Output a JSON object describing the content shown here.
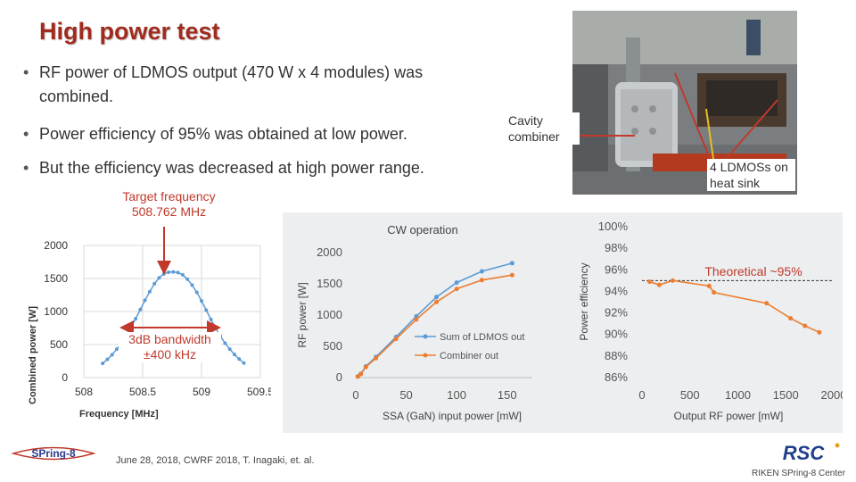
{
  "slide": {
    "title": "High power test",
    "bullets": [
      "RF power of LDMOS output (470 W x 4 modules) was combined.",
      "Power efficiency of 95% was obtained at low power.",
      "But the efficiency was decreased at high power range."
    ],
    "photo_labels": {
      "cavity": "Cavity combiner",
      "ldmos": "4 LDMOSs on heat sink"
    },
    "annotations": {
      "target": "Target frequency 508.762 MHz",
      "bandwidth": "3dB bandwidth ±400 kHz",
      "theoretical": "Theoretical ~95%"
    },
    "footer_citation": "June 28, 2018, CWRF 2018,   T. Inagaki, et. al.",
    "footer_org": "RIKEN SPring-8 Center",
    "logo_left": "SPring-8",
    "logo_right": "RSC"
  },
  "chart_data": [
    {
      "type": "line",
      "xlabel": "Frequency [MHz]",
      "ylabel": "Combined power [W]",
      "xlim": [
        508,
        509.5
      ],
      "ylim": [
        0,
        2000
      ],
      "xticks": [
        "508",
        "508.5",
        "509",
        "509.5"
      ],
      "yticks": [
        "0",
        "500",
        "1000",
        "1500",
        "2000"
      ],
      "grid": true,
      "color": "#5b9bd5",
      "x": [
        508.16,
        508.2,
        508.24,
        508.28,
        508.32,
        508.36,
        508.4,
        508.44,
        508.48,
        508.52,
        508.56,
        508.6,
        508.64,
        508.68,
        508.72,
        508.76,
        508.8,
        508.84,
        508.88,
        508.92,
        508.96,
        509.0,
        509.04,
        509.08,
        509.12,
        509.16,
        509.2,
        509.24,
        509.28,
        509.32,
        509.36
      ],
      "y": [
        215,
        275,
        345,
        430,
        525,
        635,
        760,
        890,
        1030,
        1170,
        1300,
        1420,
        1510,
        1570,
        1595,
        1600,
        1590,
        1555,
        1490,
        1400,
        1290,
        1160,
        1020,
        880,
        750,
        630,
        520,
        430,
        350,
        280,
        220
      ]
    },
    {
      "type": "line",
      "title": "CW operation",
      "xlabel": "SSA (GaN) input power [mW]",
      "ylabel": "RF power [W]",
      "xlim": [
        0,
        175
      ],
      "ylim": [
        0,
        2000
      ],
      "xticks": [
        "0",
        "50",
        "100",
        "150"
      ],
      "yticks": [
        "0",
        "500",
        "1000",
        "1500",
        "2000"
      ],
      "legend": "bottom-right",
      "series": [
        {
          "name": "Sum of LDMOS out",
          "color": "#5b9bd5",
          "x": [
            2,
            5,
            10,
            20,
            40,
            60,
            80,
            100,
            125,
            155
          ],
          "y": [
            20,
            60,
            180,
            330,
            650,
            980,
            1290,
            1520,
            1700,
            1830
          ]
        },
        {
          "name": "Combiner out",
          "color": "#ed7d31",
          "x": [
            2,
            5,
            10,
            20,
            40,
            60,
            80,
            100,
            125,
            155
          ],
          "y": [
            15,
            55,
            170,
            310,
            620,
            930,
            1210,
            1420,
            1560,
            1640
          ]
        }
      ]
    },
    {
      "type": "line",
      "xlabel": "Output RF power [mW]",
      "ylabel": "Power efficiency",
      "xlim": [
        0,
        2000
      ],
      "ylim": [
        86,
        100
      ],
      "xticks": [
        "0",
        "500",
        "1000",
        "1500",
        "2000"
      ],
      "yticks": [
        "86%",
        "88%",
        "90%",
        "92%",
        "94%",
        "96%",
        "98%",
        "100%"
      ],
      "color": "#ed7d31",
      "reference_line": 95,
      "x": [
        80,
        180,
        320,
        700,
        750,
        1300,
        1550,
        1700,
        1850
      ],
      "y": [
        94.9,
        94.6,
        95.0,
        94.5,
        93.9,
        92.9,
        91.5,
        90.8,
        90.2
      ]
    }
  ]
}
